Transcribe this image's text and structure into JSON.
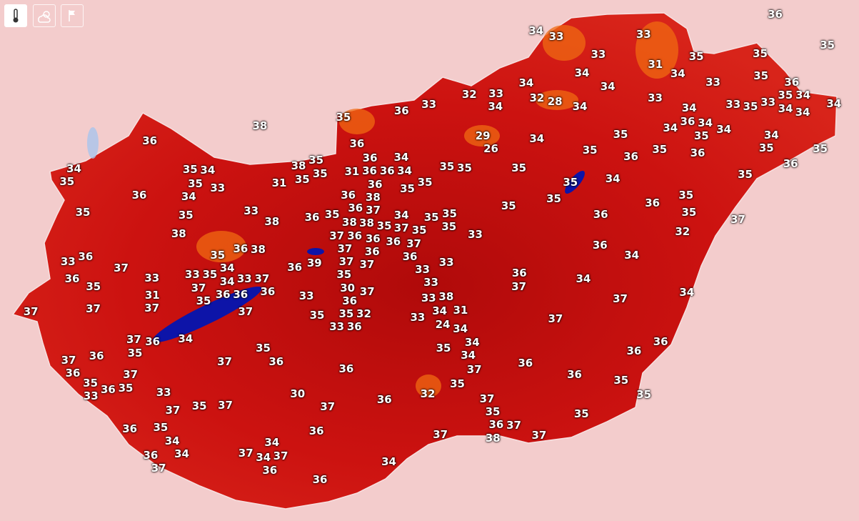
{
  "controls": [
    {
      "icon": "thermometer-icon",
      "active": true
    },
    {
      "icon": "sun-cloud-icon",
      "active": false
    },
    {
      "icon": "flag-icon",
      "active": false
    }
  ],
  "colors": {
    "background": "#f3cccc",
    "land_hot": "#c00d0c",
    "land_highland": "#f07a10",
    "lake": "#0d14a8"
  },
  "temperature_labels": [
    "36",
    "34",
    "33",
    "33",
    "35",
    "33",
    "35",
    "35",
    "31",
    "34",
    "34",
    "35",
    "34",
    "34",
    "33",
    "36",
    "34",
    "32",
    "33",
    "32",
    "28",
    "33",
    "34",
    "34",
    "33",
    "35",
    "33",
    "35",
    "34",
    "34",
    "34",
    "36",
    "33",
    "35",
    "34",
    "36",
    "34",
    "34",
    "35",
    "34",
    "38",
    "29",
    "26",
    "34",
    "35",
    "34",
    "36",
    "36",
    "35",
    "36",
    "35",
    "36",
    "35",
    "35",
    "34",
    "36",
    "34",
    "35",
    "38",
    "35",
    "35",
    "31",
    "36",
    "36",
    "34",
    "35",
    "35",
    "35",
    "35",
    "34",
    "35",
    "33",
    "31",
    "35",
    "35",
    "35",
    "34",
    "35",
    "35",
    "36",
    "34",
    "36",
    "36",
    "36",
    "35",
    "35",
    "35",
    "35",
    "33",
    "36",
    "38",
    "35",
    "37",
    "36",
    "35",
    "36",
    "35",
    "36",
    "37",
    "38",
    "38",
    "38",
    "35",
    "34",
    "35",
    "35",
    "35",
    "37",
    "38",
    "36",
    "36",
    "35",
    "33",
    "32",
    "36",
    "38",
    "37",
    "37",
    "36",
    "37",
    "36",
    "36",
    "36",
    "34",
    "36",
    "33",
    "37",
    "35",
    "37",
    "39",
    "36",
    "37",
    "33",
    "33",
    "33",
    "33",
    "35",
    "34",
    "33",
    "37",
    "34",
    "35",
    "36",
    "36",
    "37",
    "34",
    "30",
    "33",
    "35",
    "37",
    "36",
    "36",
    "36",
    "33",
    "36",
    "37",
    "35",
    "31",
    "37",
    "38",
    "33",
    "37",
    "34",
    "35",
    "32",
    "34",
    "31",
    "37",
    "37",
    "37",
    "35",
    "33",
    "36",
    "33",
    "24",
    "34",
    "34",
    "36",
    "37",
    "35",
    "37",
    "36",
    "35",
    "36",
    "35",
    "34",
    "34",
    "36",
    "36",
    "37",
    "36",
    "37",
    "36",
    "37",
    "36",
    "37",
    "36",
    "35",
    "35",
    "33",
    "36",
    "35",
    "33",
    "35",
    "30",
    "32",
    "36",
    "35",
    "37",
    "35",
    "37",
    "37",
    "37",
    "35",
    "36",
    "35",
    "36",
    "35",
    "36",
    "37",
    "38",
    "37",
    "37",
    "34",
    "34",
    "34",
    "37",
    "34",
    "37",
    "36",
    "37",
    "34",
    "36",
    "36"
  ]
}
